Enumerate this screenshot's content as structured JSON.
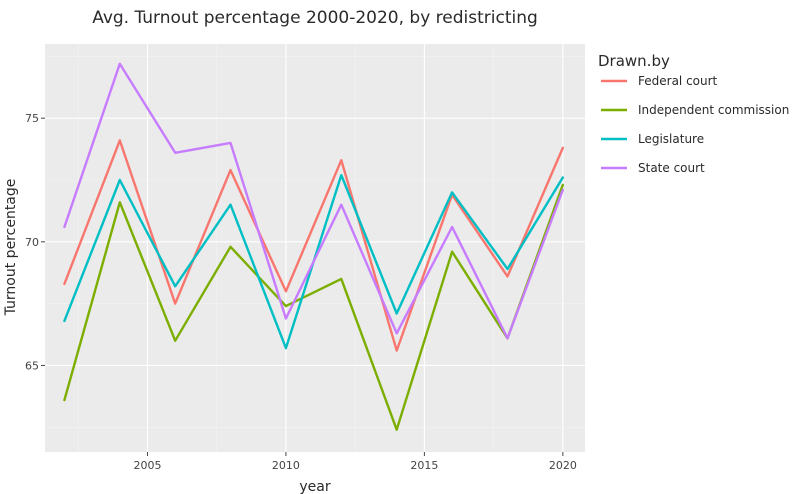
{
  "chart_data": {
    "type": "line",
    "title": "Avg. Turnout percentage 2000-2020, by redistricting",
    "xlabel": "year",
    "ylabel": "Turnout percentage",
    "x": [
      2002,
      2004,
      2006,
      2008,
      2010,
      2012,
      2014,
      2016,
      2018,
      2020
    ],
    "xlim": [
      2001.3,
      2020.8
    ],
    "ylim": [
      61.5,
      78.0
    ],
    "xticks": [
      2005,
      2010,
      2015,
      2020
    ],
    "yticks": [
      65,
      70,
      75
    ],
    "grid": true,
    "legend_title": "Drawn.by",
    "legend_position": "right",
    "series": [
      {
        "name": "Federal court",
        "color": "#F8766D",
        "values": [
          68.3,
          74.1,
          67.5,
          72.9,
          68.0,
          73.3,
          65.6,
          71.9,
          68.6,
          73.8
        ]
      },
      {
        "name": "Independent commission",
        "color": "#7CAE00",
        "values": [
          63.6,
          71.6,
          66.0,
          69.8,
          67.4,
          68.5,
          62.4,
          69.6,
          66.1,
          72.3
        ]
      },
      {
        "name": "Legislature",
        "color": "#00BFC4",
        "values": [
          66.8,
          72.5,
          68.2,
          71.5,
          65.7,
          72.7,
          67.1,
          72.0,
          68.9,
          72.6
        ]
      },
      {
        "name": "State court",
        "color": "#C77CFF",
        "values": [
          70.6,
          77.2,
          73.6,
          74.0,
          66.9,
          71.5,
          66.3,
          70.6,
          66.1,
          72.1
        ]
      }
    ]
  }
}
